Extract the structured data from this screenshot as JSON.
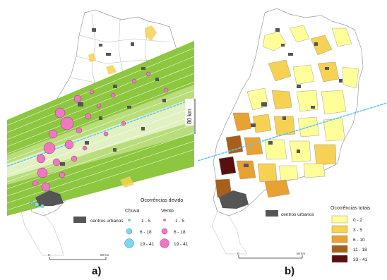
{
  "panel_a": {
    "label": "a)",
    "band_label": "80 km",
    "legend_title": "Ocorrências devido",
    "urban_label": "centros urbanos",
    "col_rain": "Chuva",
    "col_wind": "Vento",
    "classes": [
      "1 - 5",
      "6 - 18",
      "19 - 41"
    ],
    "scale_start": "0",
    "scale_end": "50 km",
    "colors": {
      "rain": "#7fd6f2",
      "wind": "#ef78c0",
      "urban": "#555555",
      "band": "#8dc63f"
    }
  },
  "panel_b": {
    "label": "b)",
    "urban_label": "centros urbanos",
    "legend_title": "Ocorrências totais",
    "classes": [
      {
        "label": "0 - 2",
        "color": "#ffff99"
      },
      {
        "label": "3 - 5",
        "color": "#f7d154"
      },
      {
        "label": "6 - 10",
        "color": "#e8a133"
      },
      {
        "label": "11 - 18",
        "color": "#a85f1c"
      },
      {
        "label": "33 - 41",
        "color": "#5a0f0f"
      }
    ],
    "scale_start": "0",
    "scale_end": "50 km"
  }
}
